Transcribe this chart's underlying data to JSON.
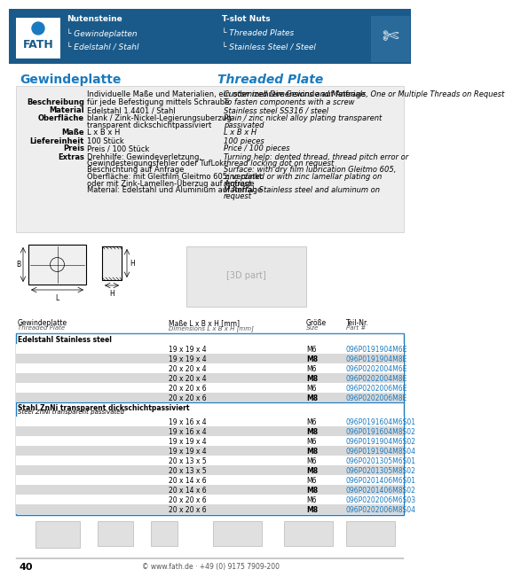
{
  "header_bg": "#1a5a8a",
  "header_text_left": [
    "Nutensteine",
    "└ Gewindeplatten",
    "└ Edelstahl / Stahl"
  ],
  "header_text_right": [
    "T-slot Nuts",
    "└ Threaded Plates",
    "└ Stainless Steel / Steel"
  ],
  "fath_logo_text": "FATH",
  "page_bg": "#ffffff",
  "section_title_de": "Gewindeplatte",
  "section_title_en": "Threaded Plate",
  "section_title_color": "#1a7abf",
  "info_bg": "#eeeeee",
  "info_rows": [
    [
      "",
      "Individuelle Maße und Materialien, ein oder mehrere Gewinde auf Anfrage",
      "Customized Dimensions and Materials, One or Multiple Threads on Request"
    ],
    [
      "Beschreibung",
      "für jede Befestigung mittels Schraube",
      "To fasten components with a screw"
    ],
    [
      "Material",
      "Edelstahl 1.4401 / Stahl",
      "Stainless steel SS316 / steel"
    ],
    [
      "Oberfläche",
      "blank / Zink-Nickel-Legierungsuberzug\ntransparent dickschichtpassiviert",
      "Plain / zinc nickel alloy plating transparent\npassivated"
    ],
    [
      "Maße",
      "L x B x H",
      "L x B x H"
    ],
    [
      "Liefereinheit",
      "100 Stück",
      "100 pieces"
    ],
    [
      "Preis",
      "Preis / 100 Stück",
      "Price / 100 pieces"
    ],
    [
      "Extras",
      "Drehhilfe: Gewindeverletzung,\nGewindesteigungsfehler oder TufLok-\nBeschichtung auf Anfrage\nOberfläche: mit Gleitfilm Gleitmo 605, verzinkt\noder mit Zink-Lamellen-Überzug auf Anfrage\nMaterial: Edelstahl und Aluminium auf Anfrage",
      "Turning help: dented thread, thread pitch error or\nthread locking dot on request\nSurface: with dry film lubrication Gleitmo 605,\nzinc plated or with zinc lamellar plating on\nrequest\nMaterial: Stainless steel and aluminum on\nrequest"
    ]
  ],
  "table_header": [
    "Gewindeplatte\nThreaded Plate",
    "Maße L x B x H [mm]\nDimensions L x B x H [mm]",
    "Größe\nSize",
    "Teil-Nr.\nPart #"
  ],
  "table_sections": [
    {
      "label_de": "Edelstahl Stainless steel",
      "label_en": "",
      "rows": [
        [
          "19 x 19 x 4",
          "M6",
          "096P0191904M6E"
        ],
        [
          "19 x 19 x 4",
          "M8",
          "096P0191904M8E"
        ],
        [
          "20 x 20 x 4",
          "M6",
          "096P0202004M6E"
        ],
        [
          "20 x 20 x 4",
          "M8",
          "096P0202004M8E"
        ],
        [
          "20 x 20 x 6",
          "M6",
          "096P0202006M6E"
        ],
        [
          "20 x 20 x 6",
          "M8",
          "096P0202006M8E"
        ]
      ]
    },
    {
      "label_de": "Stahl ZnNi transparent dickschichtpassiviert",
      "label_en": "Steel ZnNi transparent passivated",
      "rows": [
        [
          "19 x 16 x 4",
          "M6",
          "096P0191604M6S01"
        ],
        [
          "19 x 16 x 4",
          "M8",
          "096P0191604M8S02"
        ],
        [
          "19 x 19 x 4",
          "M6",
          "096P0191904M6S02"
        ],
        [
          "19 x 19 x 4",
          "M8",
          "096P0191904M8S04"
        ],
        [
          "20 x 13 x 5",
          "M6",
          "096P0201305M6S01"
        ],
        [
          "20 x 13 x 5",
          "M8",
          "096P0201305M8S02"
        ],
        [
          "20 x 14 x 6",
          "M6",
          "096P0201406M6S01"
        ],
        [
          "20 x 14 x 6",
          "M8",
          "096P0201406M8S02"
        ],
        [
          "20 x 20 x 6",
          "M6",
          "096P0202006M6S03"
        ],
        [
          "20 x 20 x 6",
          "M8",
          "096P0202006M8S04"
        ]
      ]
    }
  ],
  "link_color": "#1a7abf",
  "table_border_color": "#1a7abf",
  "table_alt_color": "#d9d9d9",
  "footer_text": "40",
  "footer_url": "© www.fath.de · +49 (0) 9175 7909-200"
}
